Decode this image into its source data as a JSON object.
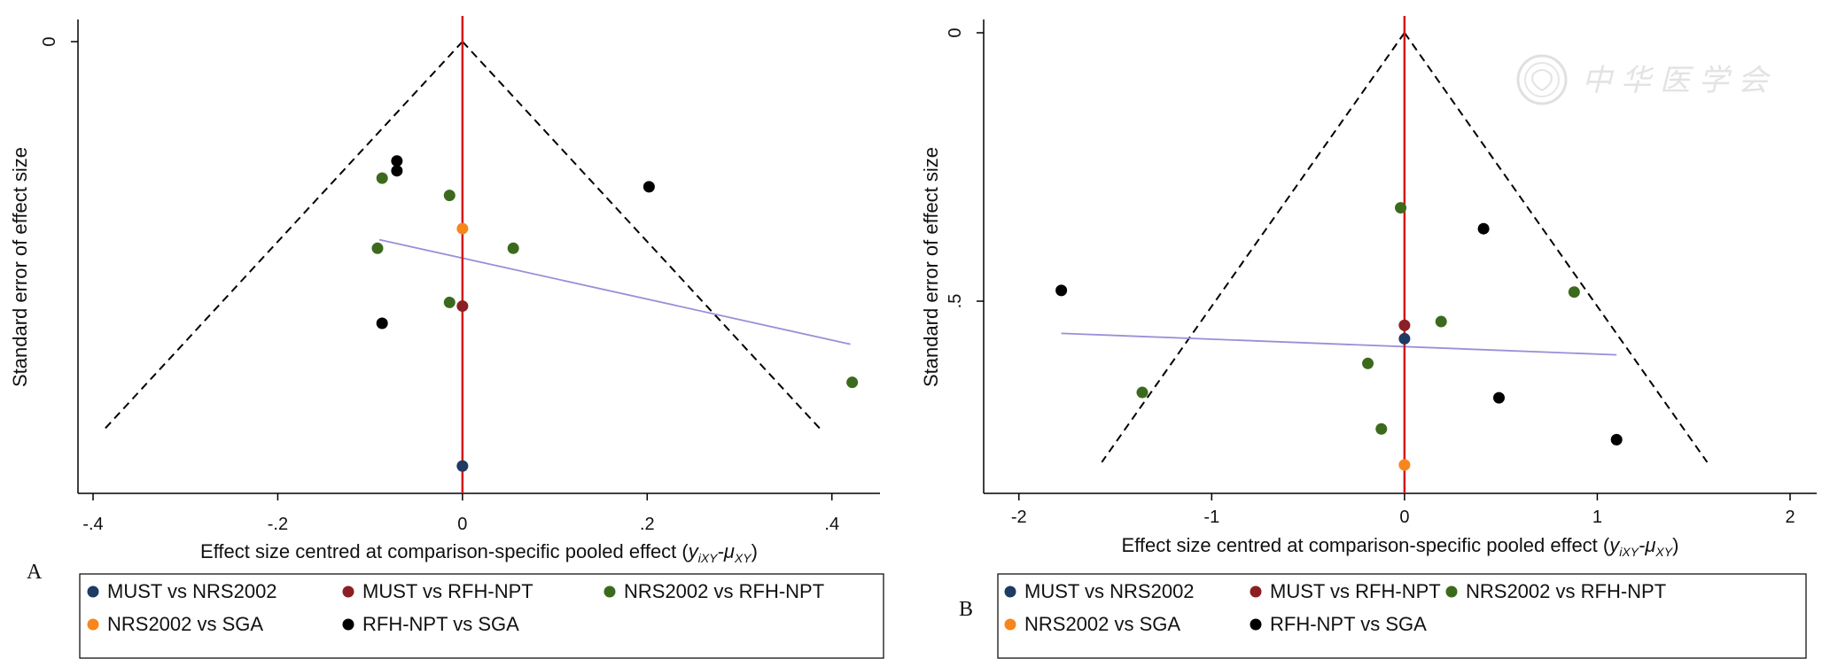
{
  "watermark": {
    "text": "中华医学会"
  },
  "series_colors": {
    "MUST vs NRS2002": "#1d3b63",
    "MUST vs RFH-NPT": "#8b1f23",
    "NRS2002 vs RFH-NPT": "#3c6a1d",
    "NRS2002 vs SGA": "#f7861c",
    "RFH-NPT vs SGA": "#000000"
  },
  "chart_data": [
    {
      "panel": "A",
      "type": "scatter",
      "ylabel": "Standard error of effect size",
      "xlabel_main": "Effect size centred at comparison-specific pooled effect (",
      "xlabel_math": "y",
      "xlabel_sub1": "iXY",
      "xlabel_minus": "-μ",
      "xlabel_sub2": "XY",
      "xlabel_close": ")",
      "xlim": [
        -0.4,
        0.43
      ],
      "ylim_reversed": [
        0,
        0.355
      ],
      "x_ticks": [
        {
          "value": -0.4,
          "label": "-.4"
        },
        {
          "value": -0.2,
          "label": "-.2"
        },
        {
          "value": 0,
          "label": "0"
        },
        {
          "value": 0.2,
          "label": ".2"
        },
        {
          "value": 0.4,
          "label": ".4"
        }
      ],
      "y_ticks": [
        {
          "value": 0,
          "label": "0"
        }
      ],
      "funnel": {
        "apex": [
          0,
          0
        ],
        "left_end": [
          -0.39,
          0.317
        ],
        "right_end": [
          0.39,
          0.317
        ]
      },
      "regression_line": {
        "from": [
          -0.09,
          0.161
        ],
        "to": [
          0.42,
          0.246
        ]
      },
      "legend": {
        "labels": [
          "MUST vs NRS2002",
          "MUST vs RFH-NPT",
          "NRS2002 vs RFH-NPT",
          "NRS2002 vs SGA",
          "RFH-NPT vs SGA"
        ]
      },
      "series": [
        {
          "name": "MUST vs NRS2002",
          "points": [
            [
              0,
              0.345
            ]
          ]
        },
        {
          "name": "MUST vs RFH-NPT",
          "points": [
            [
              0,
              0.215
            ]
          ]
        },
        {
          "name": "NRS2002 vs RFH-NPT",
          "points": [
            [
              -0.087,
              0.111
            ],
            [
              -0.014,
              0.125
            ],
            [
              -0.092,
              0.168
            ],
            [
              0.055,
              0.168
            ],
            [
              -0.014,
              0.212
            ],
            [
              0.422,
              0.277
            ]
          ]
        },
        {
          "name": "NRS2002 vs SGA",
          "points": [
            [
              0,
              0.152
            ]
          ]
        },
        {
          "name": "RFH-NPT vs SGA",
          "points": [
            [
              -0.071,
              0.097
            ],
            [
              -0.071,
              0.105
            ],
            [
              0.202,
              0.118
            ],
            [
              -0.087,
              0.229
            ]
          ]
        }
      ]
    },
    {
      "panel": "B",
      "type": "scatter",
      "ylabel": "Standard error of effect size",
      "xlabel_main": "Effect size centred at comparison-specific pooled effect (",
      "xlabel_math": "y",
      "xlabel_sub1": "iXY",
      "xlabel_minus": "-μ",
      "xlabel_sub2": "XY",
      "xlabel_close": ")",
      "xlim": [
        -2.1,
        2.0
      ],
      "ylim_reversed": [
        0,
        0.83
      ],
      "x_ticks": [
        {
          "value": -2,
          "label": "-2"
        },
        {
          "value": -1,
          "label": "-1"
        },
        {
          "value": 0,
          "label": "0"
        },
        {
          "value": 1,
          "label": "1"
        },
        {
          "value": 2,
          "label": "2"
        }
      ],
      "y_ticks": [
        {
          "value": 0,
          "label": "0"
        },
        {
          "value": 0.5,
          "label": ".5"
        }
      ],
      "funnel": {
        "apex": [
          0,
          0
        ],
        "left_end": [
          -1.57,
          0.8
        ],
        "right_end": [
          1.57,
          0.8
        ]
      },
      "regression_line": {
        "from": [
          -1.78,
          0.56
        ],
        "to": [
          1.1,
          0.6
        ]
      },
      "legend": {
        "labels": [
          "MUST vs NRS2002",
          "MUST vs RFH-NPT",
          "NRS2002 vs RFH-NPT",
          "NRS2002 vs SGA",
          "RFH-NPT vs SGA"
        ]
      },
      "series": [
        {
          "name": "MUST vs NRS2002",
          "points": [
            [
              0,
              0.57
            ]
          ]
        },
        {
          "name": "MUST vs RFH-NPT",
          "points": [
            [
              0,
              0.545
            ]
          ]
        },
        {
          "name": "NRS2002 vs RFH-NPT",
          "points": [
            [
              -0.02,
              0.326
            ],
            [
              0.19,
              0.538
            ],
            [
              0.88,
              0.483
            ],
            [
              -0.19,
              0.616
            ],
            [
              -1.36,
              0.67
            ],
            [
              -0.12,
              0.738
            ]
          ]
        },
        {
          "name": "NRS2002 vs SGA",
          "points": [
            [
              0,
              0.805
            ]
          ]
        },
        {
          "name": "RFH-NPT vs SGA",
          "points": [
            [
              0.41,
              0.365
            ],
            [
              -1.78,
              0.48
            ],
            [
              0.49,
              0.68
            ],
            [
              1.1,
              0.758
            ]
          ]
        }
      ]
    }
  ]
}
